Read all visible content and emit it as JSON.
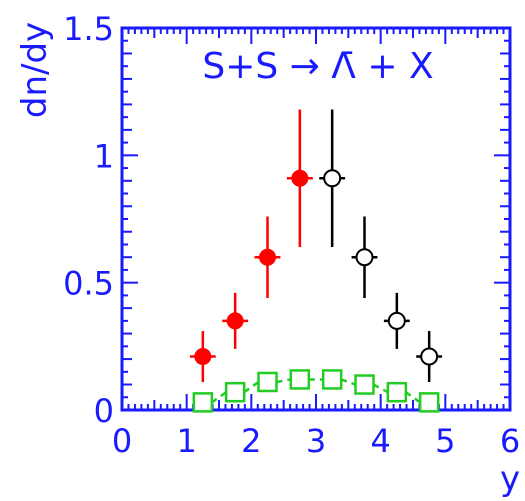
{
  "chart_data": {
    "type": "scatter",
    "title": "S+S → Λ̄ + X",
    "xlabel": "y",
    "ylabel": "dn/dy",
    "xlim": [
      0,
      6
    ],
    "ylim": [
      0,
      1.5
    ],
    "x_ticks": [
      "0",
      "1",
      "2",
      "3",
      "4",
      "5",
      "6"
    ],
    "y_ticks": [
      "0",
      "0.5",
      "1",
      "1.5"
    ],
    "grid": false,
    "series": [
      {
        "marker": "filled-circle",
        "color": "#ff0000",
        "errorbar_color": "#ff0000",
        "points": [
          {
            "x": 1.25,
            "y": 0.21,
            "xerr": 0.2,
            "yerr": 0.1
          },
          {
            "x": 1.75,
            "y": 0.35,
            "xerr": 0.2,
            "yerr": 0.11
          },
          {
            "x": 2.25,
            "y": 0.6,
            "xerr": 0.2,
            "yerr": 0.16
          },
          {
            "x": 2.75,
            "y": 0.91,
            "xerr": 0.2,
            "yerr": 0.27
          }
        ]
      },
      {
        "marker": "open-circle",
        "color": "#000000",
        "errorbar_color": "#000000",
        "points": [
          {
            "x": 3.25,
            "y": 0.91,
            "xerr": 0.2,
            "yerr": 0.27
          },
          {
            "x": 3.75,
            "y": 0.6,
            "xerr": 0.2,
            "yerr": 0.16
          },
          {
            "x": 4.25,
            "y": 0.35,
            "xerr": 0.2,
            "yerr": 0.11
          },
          {
            "x": 4.75,
            "y": 0.21,
            "xerr": 0.2,
            "yerr": 0.1
          }
        ]
      },
      {
        "marker": "open-square",
        "color": "#22cc22",
        "line_style": "dashed",
        "points": [
          {
            "x": 1.25,
            "y": 0.03
          },
          {
            "x": 1.75,
            "y": 0.07
          },
          {
            "x": 2.25,
            "y": 0.11
          },
          {
            "x": 2.75,
            "y": 0.12
          },
          {
            "x": 3.25,
            "y": 0.12
          },
          {
            "x": 3.75,
            "y": 0.1
          },
          {
            "x": 4.25,
            "y": 0.07
          },
          {
            "x": 4.75,
            "y": 0.03
          }
        ]
      }
    ]
  }
}
